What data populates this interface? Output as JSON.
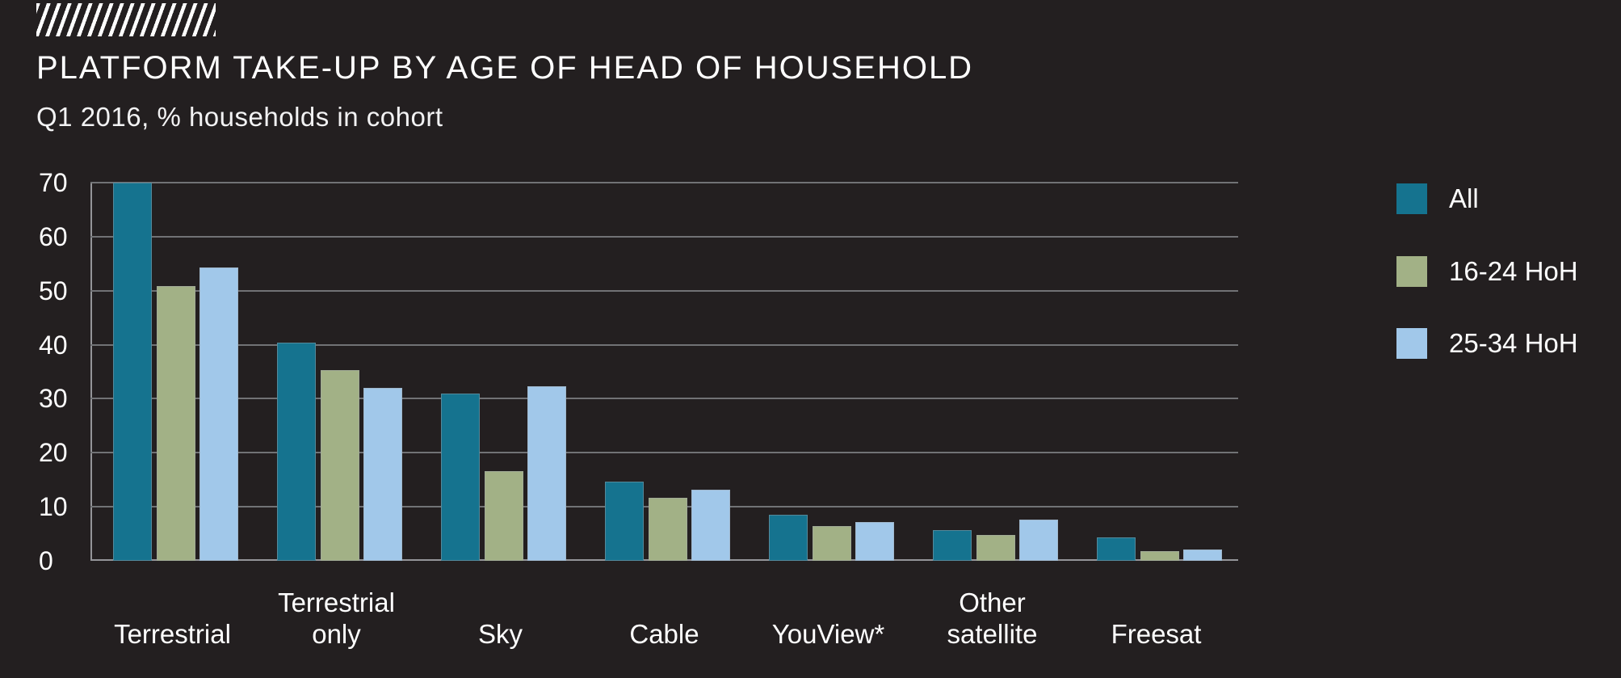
{
  "header": {
    "title": "PLATFORM TAKE-UP BY AGE OF HEAD OF HOUSEHOLD",
    "subtitle": "Q1 2016, % households in cohort"
  },
  "colors": {
    "background": "#231f20",
    "text": "#ffffff",
    "gridline": "#717275",
    "axis": "#949599"
  },
  "chart_data": {
    "type": "bar",
    "title": "PLATFORM TAKE-UP BY AGE OF HEAD OF HOUSEHOLD",
    "subtitle": "Q1 2016, % households in cohort",
    "categories": [
      "Terrestrial",
      "Terrestrial\nonly",
      "Sky",
      "Cable",
      "YouView*",
      "Other\nsatellite",
      "Freesat"
    ],
    "series": [
      {
        "name": "All",
        "color": "#15738f",
        "values": [
          70,
          40.4,
          31,
          14.7,
          8.5,
          5.7,
          4.3
        ]
      },
      {
        "name": "16-24 HoH",
        "color": "#a2b186",
        "values": [
          50.8,
          35.3,
          16.6,
          11.6,
          6.5,
          4.8,
          1.8
        ]
      },
      {
        "name": "25-34 HoH",
        "color": "#a1c8ea",
        "values": [
          54.3,
          32,
          32.3,
          13.1,
          7.2,
          7.6,
          2.1
        ]
      }
    ],
    "ylabel": "",
    "xlabel": "",
    "ylim": [
      0,
      70
    ],
    "yticks": [
      0,
      10,
      20,
      30,
      40,
      50,
      60,
      70
    ],
    "grid": true,
    "legend_position": "right"
  }
}
